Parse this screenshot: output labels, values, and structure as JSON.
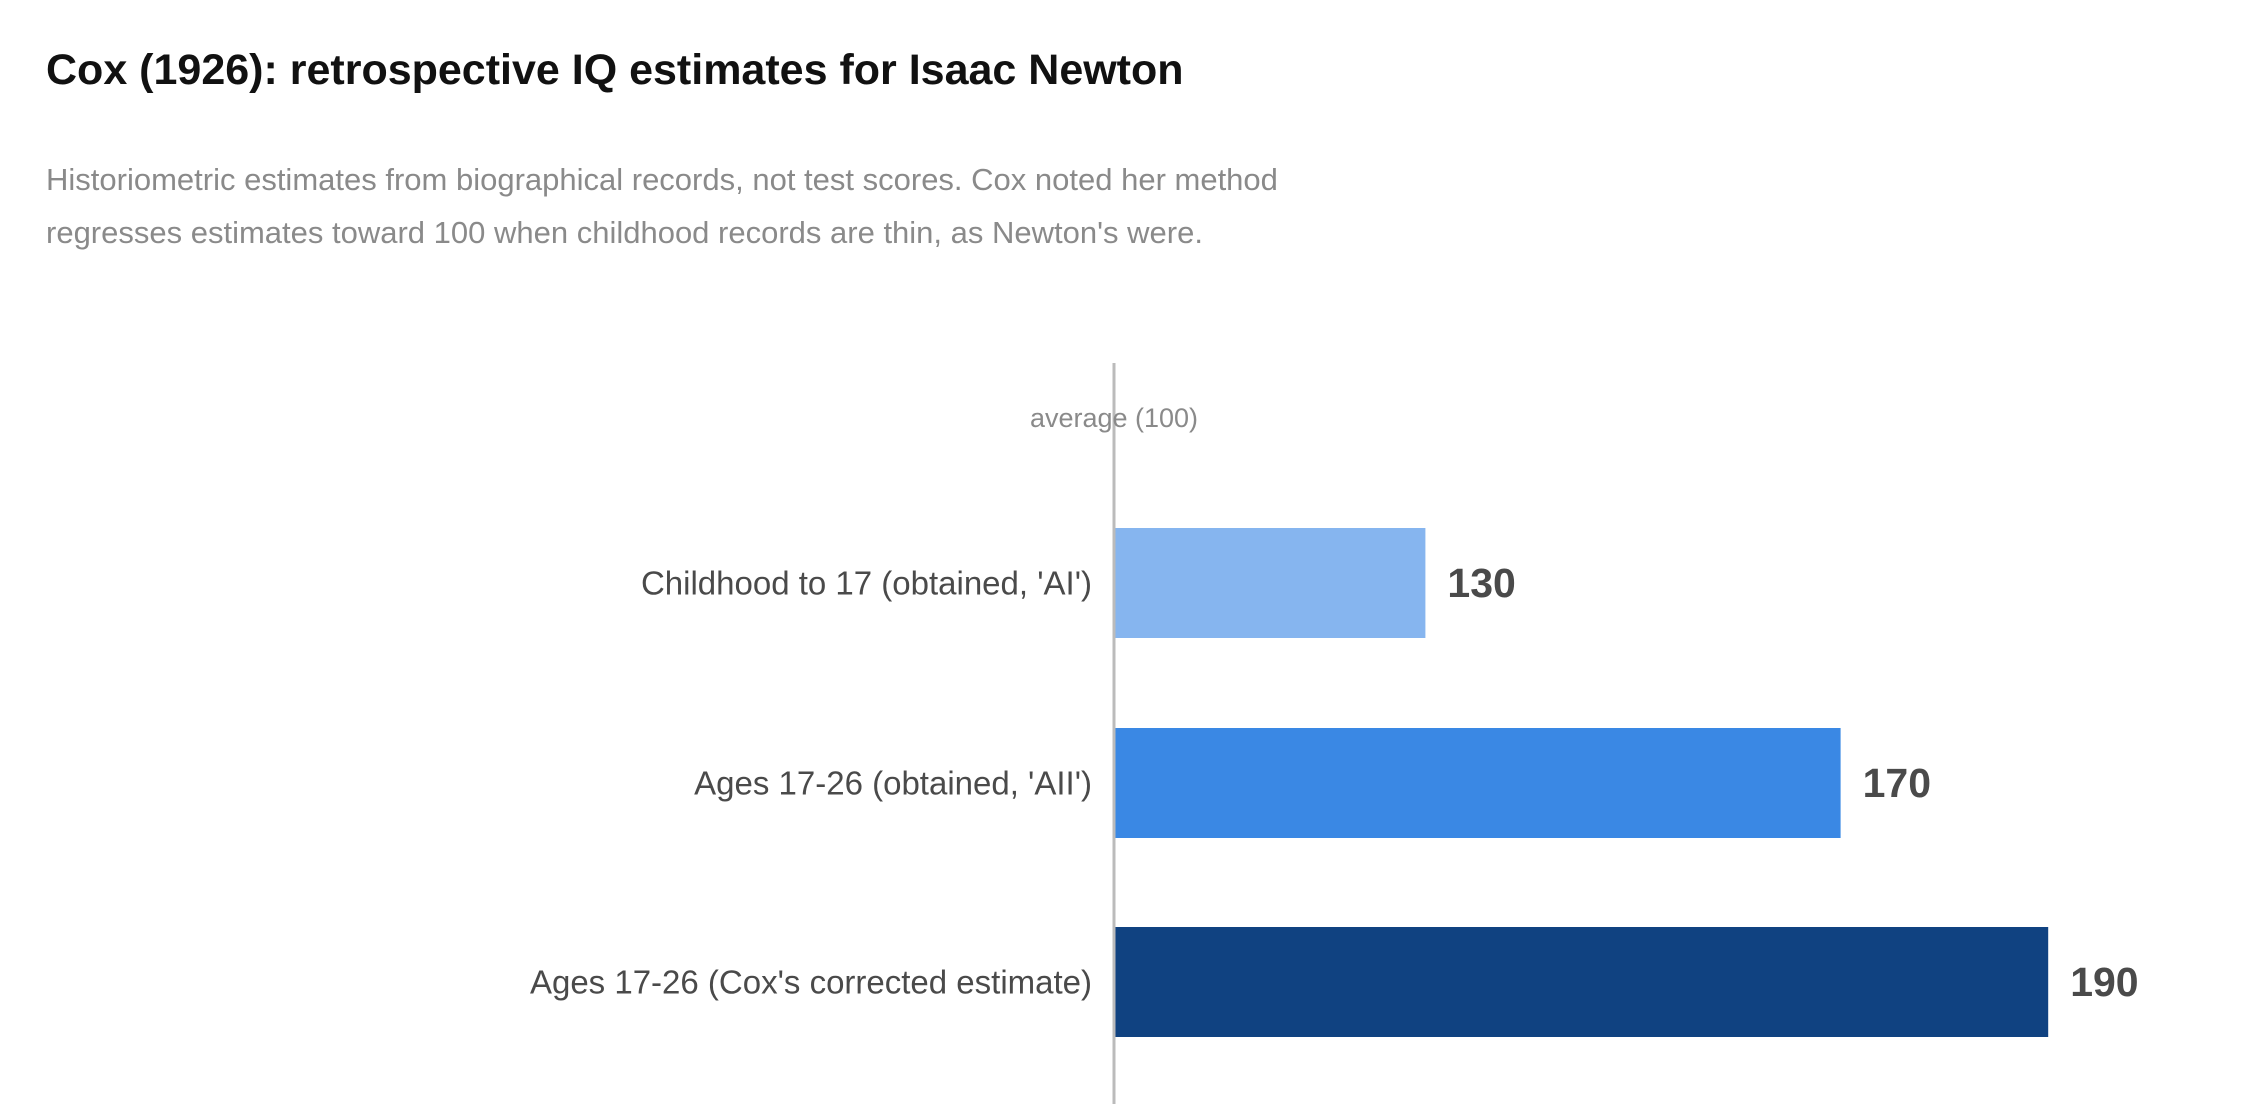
{
  "chart_data": {
    "type": "bar",
    "orientation": "horizontal",
    "title": "Cox (1926): retrospective IQ estimates for Isaac Newton",
    "subtitle_lines": [
      "Historiometric estimates from biographical records, not test scores. Cox noted her method",
      "regresses estimates toward 100 when childhood records are thin, as Newton's were."
    ],
    "categories": [
      "Childhood to 17 (obtained, 'AI')",
      "Ages 17-26 (obtained, 'AII')",
      "Ages 17-26 (Cox's corrected estimate)"
    ],
    "values": [
      130,
      170,
      190
    ],
    "value_labels": [
      "130",
      "170",
      "190"
    ],
    "colors": [
      "#86b5ef",
      "#3a88e4",
      "#104281"
    ],
    "baseline": 100,
    "baseline_label": "average (100)",
    "baseline_color": "#bbbbbb",
    "xlim": [
      100,
      190
    ],
    "grid": false,
    "legend": "none"
  }
}
